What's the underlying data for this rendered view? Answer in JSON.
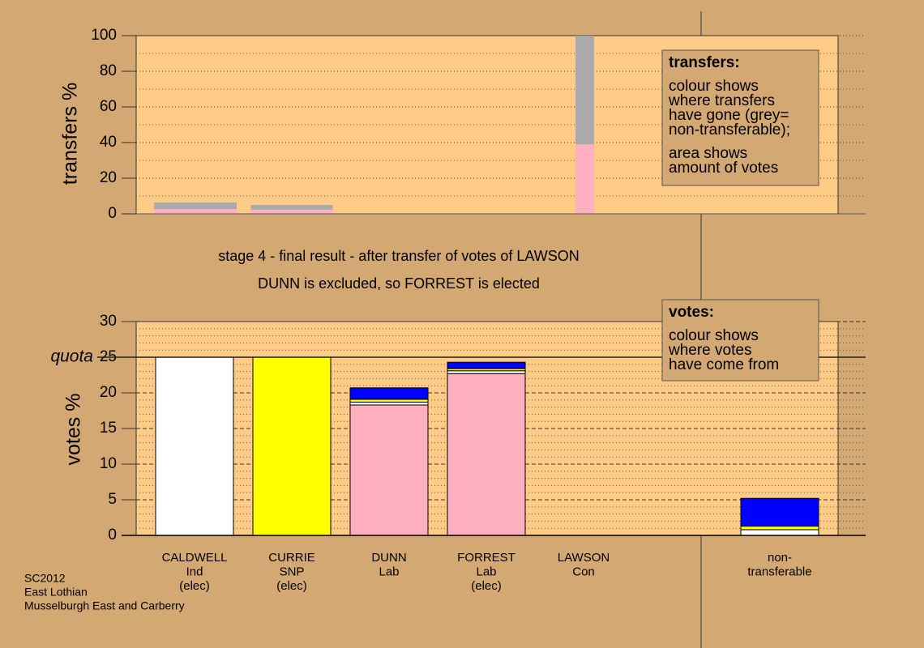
{
  "chart_data": [
    {
      "type": "bar",
      "stacked": true,
      "ylabel": "transfers %",
      "ylim": [
        0,
        100
      ],
      "yticks": [
        0,
        20,
        40,
        60,
        80,
        100
      ],
      "grid": true,
      "minor_per_tick": 2,
      "series": [
        {
          "color": "#ffb0c0",
          "values": [
            2.7,
            2.3,
            0,
            0,
            39
          ]
        },
        {
          "color": "#aaaaaa",
          "values": [
            3.7,
            2.7,
            0,
            0,
            61
          ]
        }
      ],
      "annotation": {
        "title": "transfers:",
        "paragraphs": [
          [
            "colour shows",
            "where transfers",
            "have gone (grey=",
            "non-transferable);"
          ],
          [
            "area shows",
            "amount of votes"
          ]
        ]
      }
    },
    {
      "type": "bar",
      "stacked": true,
      "ylabel": "votes %",
      "ylim": [
        0,
        30
      ],
      "yticks": [
        0,
        5,
        10,
        15,
        20,
        25,
        30
      ],
      "grid": true,
      "minor_per_tick": 5,
      "quota": 25,
      "quota_label": "quota",
      "categories": [
        [
          "CALDWELL",
          "Ind",
          "(elec)"
        ],
        [
          "CURRIE",
          "SNP",
          "(elec)"
        ],
        [
          "DUNN",
          "Lab"
        ],
        [
          "FORREST",
          "Lab",
          "(elec)"
        ],
        [
          "LAWSON",
          "Con"
        ],
        [
          "non-",
          "transferable"
        ]
      ],
      "series": [
        {
          "color": "#ffb0c0",
          "values": [
            0,
            0,
            18.3,
            22.7,
            0,
            0
          ]
        },
        {
          "color": "#ffffff",
          "values": [
            25,
            0,
            0.4,
            0.4,
            0,
            0.8
          ]
        },
        {
          "color": "#ffff00",
          "values": [
            0,
            25,
            0.4,
            0.3,
            0,
            0.5
          ]
        },
        {
          "color": "#0000ff",
          "values": [
            0,
            0,
            1.6,
            0.9,
            0,
            3.9
          ]
        }
      ],
      "annotation": {
        "title": "votes:",
        "paragraphs": [
          [
            "colour shows",
            "where votes",
            "have come from"
          ]
        ]
      }
    }
  ],
  "caption": [
    "stage 4 - final result - after transfer of votes of LAWSON",
    "DUNN is excluded, so FORREST is elected"
  ],
  "footer": [
    "SC2012",
    "East Lothian",
    "Musselburgh East and Carberry"
  ]
}
